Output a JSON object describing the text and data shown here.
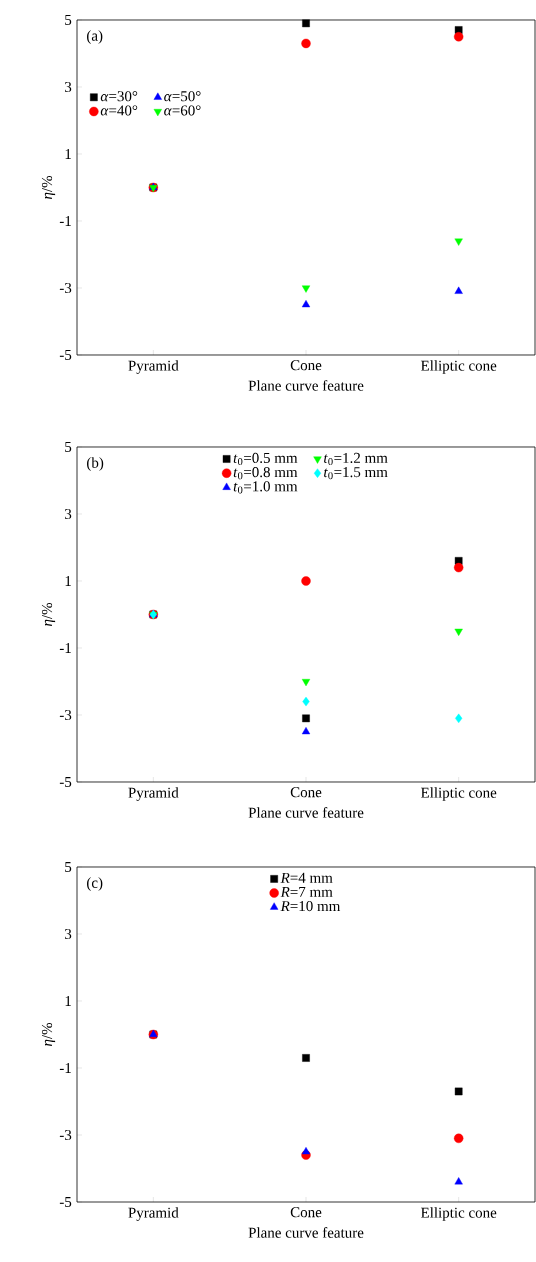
{
  "chart_data": [
    {
      "type": "scatter",
      "categories": [
        "Pyramid",
        "Cone",
        "Elliptic cone"
      ],
      "xlabel": "Plane curve feature",
      "ylabel": "*η*/%",
      "ylim": [
        -5,
        5
      ],
      "yticks": [
        -5,
        -3,
        -1,
        1,
        3,
        5
      ],
      "legend": "top left",
      "annotations": [
        "(a)"
      ],
      "series": [
        {
          "name": "*α*=30°",
          "color": "#000000",
          "marker": "square",
          "values": [
            0,
            4.9,
            4.7
          ]
        },
        {
          "name": "*α*=40°",
          "color": "#ff0000",
          "marker": "circle",
          "values": [
            0,
            4.3,
            4.5
          ]
        },
        {
          "name": "*α*=50°",
          "color": "#0000ff",
          "marker": "triangle",
          "values": [
            0,
            -3.5,
            -3.1
          ]
        },
        {
          "name": "*α*=60°",
          "color": "#00ff00",
          "marker": "triangle-down",
          "values": [
            0,
            -3.0,
            -1.6
          ]
        }
      ]
    },
    {
      "type": "scatter",
      "categories": [
        "Pyramid",
        "Cone",
        "Elliptic cone"
      ],
      "xlabel": "Plane curve feature",
      "ylabel": "*η*/%",
      "ylim": [
        -5,
        5
      ],
      "yticks": [
        -5,
        -3,
        -1,
        1,
        3,
        5
      ],
      "legend": "top",
      "annotations": [
        "(b)"
      ],
      "series": [
        {
          "name": "*t*$_{0}$=0.5 mm",
          "color": "#000000",
          "marker": "square",
          "values": [
            0,
            -3.1,
            1.6
          ]
        },
        {
          "name": "*t*$_{0}$=0.8 mm",
          "color": "#ff0000",
          "marker": "circle",
          "values": [
            0,
            1.0,
            1.4
          ]
        },
        {
          "name": "*t*$_{0}$=1.0 mm",
          "color": "#0000ff",
          "marker": "triangle",
          "values": [
            0,
            -3.5,
            null
          ]
        },
        {
          "name": "*t*$_{0}$=1.2 mm",
          "color": "#00ff00",
          "marker": "triangle-down",
          "values": [
            0,
            -2.0,
            -0.5
          ]
        },
        {
          "name": "*t*$_{0}$=1.5 mm",
          "color": "#00ffff",
          "marker": "diamond",
          "values": [
            0,
            -2.6,
            -3.1
          ]
        }
      ]
    },
    {
      "type": "scatter",
      "categories": [
        "Pyramid",
        "Cone",
        "Elliptic cone"
      ],
      "xlabel": "Plane curve feature",
      "ylabel": "*η*/%",
      "ylim": [
        -5,
        5
      ],
      "yticks": [
        -5,
        -3,
        -1,
        1,
        3,
        5
      ],
      "legend": "top",
      "annotations": [
        "(c)"
      ],
      "series": [
        {
          "name": "*R*=4 mm",
          "color": "#000000",
          "marker": "square",
          "values": [
            0,
            -0.7,
            -1.7
          ]
        },
        {
          "name": "*R*=7 mm",
          "color": "#ff0000",
          "marker": "circle",
          "values": [
            0,
            -3.6,
            -3.1
          ]
        },
        {
          "name": "*R*=10 mm",
          "color": "#0000ff",
          "marker": "triangle",
          "values": [
            0,
            -3.5,
            -4.4
          ]
        }
      ]
    }
  ]
}
